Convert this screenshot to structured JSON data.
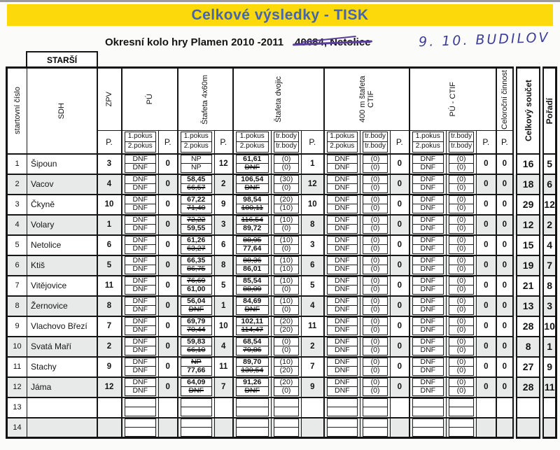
{
  "colors": {
    "banner_yellow": "#fbd90b",
    "title_blue": "#4565ae",
    "pen_ink_violet": "#5a3f9a",
    "handwriting_blue": "#3c3d99",
    "row_shade_gray": "#e7eae8",
    "line_black": "#161616"
  },
  "page": {
    "banner_title": "Celkové výsledky - TISK",
    "subtitle": "Okresní kolo hry Plamen 2010 -2011",
    "crossed_out_location": "40684, Netolice",
    "handwritten_note": "9. 10. BUDILOV",
    "category_label": "STARŠÍ"
  },
  "table": {
    "headers": {
      "start_no": "startovní číslo",
      "sdh": "SDH",
      "zpv": "ZPV",
      "pu": "PÚ",
      "s4x60": "Štafeta 4x60m",
      "dvojic": "Štafeta dvojic",
      "ctif400": "400 m štafeta CTIF",
      "puctif": "PÚ - CTIF",
      "celorocni": "Celoroční činnost",
      "total": "Celkový součet",
      "rank": "Pořadí",
      "p": "P.",
      "attempt1": "1.pokus",
      "attempt2": "2.pokus",
      "trbody": "tr.body"
    },
    "rows": [
      {
        "no": "1",
        "sdh": "Šipoun",
        "zpv": "3",
        "shaded": false,
        "pu": {
          "a1": {
            "v": "DNF"
          },
          "a2": {
            "v": "DNF"
          },
          "p": "0"
        },
        "s4x60": {
          "a1": {
            "v": "NP"
          },
          "a2": {
            "v": "NP"
          },
          "p": "12"
        },
        "dvojic": {
          "a1": {
            "v": "61,61",
            "b": true
          },
          "t1": {
            "v": "(0)"
          },
          "a2": {
            "v": "DNF",
            "s": true
          },
          "t2": {
            "v": "(0)"
          },
          "p": "1"
        },
        "ctif400": {
          "a1": {
            "v": "DNF"
          },
          "t1": {
            "v": "(0)"
          },
          "a2": {
            "v": "DNF"
          },
          "t2": {
            "v": "(0)"
          },
          "p": "0"
        },
        "puctif": {
          "a1": {
            "v": "DNF"
          },
          "t1": {
            "v": "(0)"
          },
          "a2": {
            "v": "DNF"
          },
          "t2": {
            "v": "(0)"
          },
          "p": "0"
        },
        "celorocni": "0",
        "total": "16",
        "rank": "5"
      },
      {
        "no": "2",
        "sdh": "Vacov",
        "zpv": "4",
        "shaded": true,
        "pu": {
          "a1": {
            "v": "DNF"
          },
          "a2": {
            "v": "DNF"
          },
          "p": "0"
        },
        "s4x60": {
          "a1": {
            "v": "58,45",
            "b": true
          },
          "a2": {
            "v": "66,57",
            "s": true
          },
          "p": "2"
        },
        "dvojic": {
          "a1": {
            "v": "106,54",
            "b": true
          },
          "t1": {
            "v": "(30)"
          },
          "a2": {
            "v": "DNF",
            "s": true
          },
          "t2": {
            "v": "(0)"
          },
          "p": "12"
        },
        "ctif400": {
          "a1": {
            "v": "DNF"
          },
          "t1": {
            "v": "(0)"
          },
          "a2": {
            "v": "DNF"
          },
          "t2": {
            "v": "(0)"
          },
          "p": "0"
        },
        "puctif": {
          "a1": {
            "v": "DNF"
          },
          "t1": {
            "v": "(0)"
          },
          "a2": {
            "v": "DNF"
          },
          "t2": {
            "v": "(0)"
          },
          "p": "0"
        },
        "celorocni": "0",
        "total": "18",
        "rank": "6"
      },
      {
        "no": "3",
        "sdh": "Čkyně",
        "zpv": "10",
        "shaded": false,
        "pu": {
          "a1": {
            "v": "DNF"
          },
          "a2": {
            "v": "DNF"
          },
          "p": "0"
        },
        "s4x60": {
          "a1": {
            "v": "67,22",
            "b": true
          },
          "a2": {
            "v": "71,40",
            "s": true
          },
          "p": "9"
        },
        "dvojic": {
          "a1": {
            "v": "98,54",
            "b": true
          },
          "t1": {
            "v": "(20)"
          },
          "a2": {
            "v": "100,11",
            "s": true
          },
          "t2": {
            "v": "(10)"
          },
          "p": "10"
        },
        "ctif400": {
          "a1": {
            "v": "DNF"
          },
          "t1": {
            "v": "(0)"
          },
          "a2": {
            "v": "DNF"
          },
          "t2": {
            "v": "(0)"
          },
          "p": "0"
        },
        "puctif": {
          "a1": {
            "v": "DNF"
          },
          "t1": {
            "v": "(0)"
          },
          "a2": {
            "v": "DNF"
          },
          "t2": {
            "v": "(0)"
          },
          "p": "0"
        },
        "celorocni": "0",
        "total": "29",
        "rank": "12"
      },
      {
        "no": "4",
        "sdh": "Volary",
        "zpv": "1",
        "shaded": true,
        "pu": {
          "a1": {
            "v": "DNF"
          },
          "a2": {
            "v": "DNF"
          },
          "p": "0"
        },
        "s4x60": {
          "a1": {
            "v": "72,22",
            "s": true
          },
          "a2": {
            "v": "59,55",
            "b": true
          },
          "p": "3"
        },
        "dvojic": {
          "a1": {
            "v": "116,54",
            "s": true
          },
          "t1": {
            "v": "(10)"
          },
          "a2": {
            "v": "89,72",
            "b": true
          },
          "t2": {
            "v": "(0)"
          },
          "p": "8"
        },
        "ctif400": {
          "a1": {
            "v": "DNF"
          },
          "t1": {
            "v": "(0)"
          },
          "a2": {
            "v": "DNF"
          },
          "t2": {
            "v": "(0)"
          },
          "p": "0"
        },
        "puctif": {
          "a1": {
            "v": "DNF"
          },
          "t1": {
            "v": "(0)"
          },
          "a2": {
            "v": "DNF"
          },
          "t2": {
            "v": "(0)"
          },
          "p": "0"
        },
        "celorocni": "0",
        "total": "12",
        "rank": "2"
      },
      {
        "no": "5",
        "sdh": "Netolice",
        "zpv": "6",
        "shaded": false,
        "pu": {
          "a1": {
            "v": "DNF"
          },
          "a2": {
            "v": "DNF"
          },
          "p": "0"
        },
        "s4x60": {
          "a1": {
            "v": "61,26",
            "b": true
          },
          "a2": {
            "v": "63,27",
            "s": true
          },
          "p": "6"
        },
        "dvojic": {
          "a1": {
            "v": "88,95",
            "s": true
          },
          "t1": {
            "v": "(10)"
          },
          "a2": {
            "v": "77,64",
            "b": true
          },
          "t2": {
            "v": "(0)"
          },
          "p": "3"
        },
        "ctif400": {
          "a1": {
            "v": "DNF"
          },
          "t1": {
            "v": "(0)"
          },
          "a2": {
            "v": "DNF"
          },
          "t2": {
            "v": "(0)"
          },
          "p": "0"
        },
        "puctif": {
          "a1": {
            "v": "DNF"
          },
          "t1": {
            "v": "(0)"
          },
          "a2": {
            "v": "DNF"
          },
          "t2": {
            "v": "(0)"
          },
          "p": "0"
        },
        "celorocni": "0",
        "total": "15",
        "rank": "4"
      },
      {
        "no": "6",
        "sdh": "Ktiš",
        "zpv": "5",
        "shaded": true,
        "pu": {
          "a1": {
            "v": "DNF"
          },
          "a2": {
            "v": "DNF"
          },
          "p": "0"
        },
        "s4x60": {
          "a1": {
            "v": "66,35",
            "b": true
          },
          "a2": {
            "v": "86,75",
            "s": true
          },
          "p": "8"
        },
        "dvojic": {
          "a1": {
            "v": "88,36",
            "s": true
          },
          "t1": {
            "v": "(10)"
          },
          "a2": {
            "v": "86,01",
            "b": true
          },
          "t2": {
            "v": "(10)"
          },
          "p": "6"
        },
        "ctif400": {
          "a1": {
            "v": "DNF"
          },
          "t1": {
            "v": "(0)"
          },
          "a2": {
            "v": "DNF"
          },
          "t2": {
            "v": "(0)"
          },
          "p": "0"
        },
        "puctif": {
          "a1": {
            "v": "DNF"
          },
          "t1": {
            "v": "(0)"
          },
          "a2": {
            "v": "DNF"
          },
          "t2": {
            "v": "(0)"
          },
          "p": "0"
        },
        "celorocni": "0",
        "total": "19",
        "rank": "7"
      },
      {
        "no": "7",
        "sdh": "Vitějovice",
        "zpv": "11",
        "shaded": false,
        "pu": {
          "a1": {
            "v": "DNF"
          },
          "a2": {
            "v": "DNF"
          },
          "p": "0"
        },
        "s4x60": {
          "a1": {
            "v": "76,69",
            "s": true
          },
          "a2": {
            "v": "61,00",
            "b": true
          },
          "p": "5"
        },
        "dvojic": {
          "a1": {
            "v": "85,54",
            "b": true
          },
          "t1": {
            "v": "(10)"
          },
          "a2": {
            "v": "88,09",
            "s": true
          },
          "t2": {
            "v": "(0)"
          },
          "p": "5"
        },
        "ctif400": {
          "a1": {
            "v": "DNF"
          },
          "t1": {
            "v": "(0)"
          },
          "a2": {
            "v": "DNF"
          },
          "t2": {
            "v": "(0)"
          },
          "p": "0"
        },
        "puctif": {
          "a1": {
            "v": "DNF"
          },
          "t1": {
            "v": "(0)"
          },
          "a2": {
            "v": "DNF"
          },
          "t2": {
            "v": "(0)"
          },
          "p": "0"
        },
        "celorocni": "0",
        "total": "21",
        "rank": "8"
      },
      {
        "no": "8",
        "sdh": "Žernovice",
        "zpv": "8",
        "shaded": true,
        "pu": {
          "a1": {
            "v": "DNF"
          },
          "a2": {
            "v": "DNF"
          },
          "p": "0"
        },
        "s4x60": {
          "a1": {
            "v": "56,04",
            "b": true
          },
          "a2": {
            "v": "DNF",
            "s": true
          },
          "p": "1"
        },
        "dvojic": {
          "a1": {
            "v": "84,69",
            "b": true
          },
          "t1": {
            "v": "(10)"
          },
          "a2": {
            "v": "DNF",
            "s": true
          },
          "t2": {
            "v": "(0)"
          },
          "p": "4"
        },
        "ctif400": {
          "a1": {
            "v": "DNF"
          },
          "t1": {
            "v": "(0)"
          },
          "a2": {
            "v": "DNF"
          },
          "t2": {
            "v": "(0)"
          },
          "p": "0"
        },
        "puctif": {
          "a1": {
            "v": "DNF"
          },
          "t1": {
            "v": "(0)"
          },
          "a2": {
            "v": "DNF"
          },
          "t2": {
            "v": "(0)"
          },
          "p": "0"
        },
        "celorocni": "0",
        "total": "13",
        "rank": "3"
      },
      {
        "no": "9",
        "sdh": "Vlachovo Březí",
        "zpv": "7",
        "shaded": false,
        "pu": {
          "a1": {
            "v": "DNF"
          },
          "a2": {
            "v": "DNF"
          },
          "p": "0"
        },
        "s4x60": {
          "a1": {
            "v": "69,79",
            "b": true
          },
          "a2": {
            "v": "70,44",
            "s": true
          },
          "p": "10"
        },
        "dvojic": {
          "a1": {
            "v": "102,11",
            "b": true
          },
          "t1": {
            "v": "(20)"
          },
          "a2": {
            "v": "114,47",
            "s": true
          },
          "t2": {
            "v": "(20)"
          },
          "p": "11"
        },
        "ctif400": {
          "a1": {
            "v": "DNF"
          },
          "t1": {
            "v": "(0)"
          },
          "a2": {
            "v": "DNF"
          },
          "t2": {
            "v": "(0)"
          },
          "p": "0"
        },
        "puctif": {
          "a1": {
            "v": "DNF"
          },
          "t1": {
            "v": "(0)"
          },
          "a2": {
            "v": "DNF"
          },
          "t2": {
            "v": "(0)"
          },
          "p": "0"
        },
        "celorocni": "0",
        "total": "28",
        "rank": "10"
      },
      {
        "no": "10",
        "sdh": "Svatá Maří",
        "zpv": "2",
        "shaded": true,
        "pu": {
          "a1": {
            "v": "DNF"
          },
          "a2": {
            "v": "DNF"
          },
          "p": "0"
        },
        "s4x60": {
          "a1": {
            "v": "59,83",
            "b": true
          },
          "a2": {
            "v": "66,10",
            "s": true
          },
          "p": "4"
        },
        "dvojic": {
          "a1": {
            "v": "68,54",
            "b": true
          },
          "t1": {
            "v": "(0)"
          },
          "a2": {
            "v": "79,86",
            "s": true
          },
          "t2": {
            "v": "(0)"
          },
          "p": "2"
        },
        "ctif400": {
          "a1": {
            "v": "DNF"
          },
          "t1": {
            "v": "(0)"
          },
          "a2": {
            "v": "DNF"
          },
          "t2": {
            "v": "(0)"
          },
          "p": "0"
        },
        "puctif": {
          "a1": {
            "v": "DNF"
          },
          "t1": {
            "v": "(0)"
          },
          "a2": {
            "v": "DNF"
          },
          "t2": {
            "v": "(0)"
          },
          "p": "0"
        },
        "celorocni": "0",
        "total": "8",
        "rank": "1"
      },
      {
        "no": "11",
        "sdh": "Stachy",
        "zpv": "9",
        "shaded": false,
        "pu": {
          "a1": {
            "v": "DNF"
          },
          "a2": {
            "v": "DNF"
          },
          "p": "0"
        },
        "s4x60": {
          "a1": {
            "v": "NP",
            "s": true
          },
          "a2": {
            "v": "77,66",
            "b": true
          },
          "p": "11"
        },
        "dvojic": {
          "a1": {
            "v": "89,70",
            "b": true
          },
          "t1": {
            "v": "(10)"
          },
          "a2": {
            "v": "130,54",
            "s": true
          },
          "t2": {
            "v": "(20)"
          },
          "p": "7"
        },
        "ctif400": {
          "a1": {
            "v": "DNF"
          },
          "t1": {
            "v": "(0)"
          },
          "a2": {
            "v": "DNF"
          },
          "t2": {
            "v": "(0)"
          },
          "p": "0"
        },
        "puctif": {
          "a1": {
            "v": "DNF"
          },
          "t1": {
            "v": "(0)"
          },
          "a2": {
            "v": "DNF"
          },
          "t2": {
            "v": "(0)"
          },
          "p": "0"
        },
        "celorocni": "0",
        "total": "27",
        "rank": "9"
      },
      {
        "no": "12",
        "sdh": "Jáma",
        "zpv": "12",
        "shaded": true,
        "pu": {
          "a1": {
            "v": "DNF"
          },
          "a2": {
            "v": "DNF"
          },
          "p": "0"
        },
        "s4x60": {
          "a1": {
            "v": "64,09",
            "b": true
          },
          "a2": {
            "v": "DNF",
            "s": true
          },
          "p": "7"
        },
        "dvojic": {
          "a1": {
            "v": "91,26",
            "b": true
          },
          "t1": {
            "v": "(20)"
          },
          "a2": {
            "v": "DNF",
            "s": true
          },
          "t2": {
            "v": "(0)"
          },
          "p": "9"
        },
        "ctif400": {
          "a1": {
            "v": "DNF"
          },
          "t1": {
            "v": "(0)"
          },
          "a2": {
            "v": "DNF"
          },
          "t2": {
            "v": "(0)"
          },
          "p": "0"
        },
        "puctif": {
          "a1": {
            "v": "DNF"
          },
          "t1": {
            "v": "(0)"
          },
          "a2": {
            "v": "DNF"
          },
          "t2": {
            "v": "(0)"
          },
          "p": "0"
        },
        "celorocni": "0",
        "total": "28",
        "rank": "11"
      },
      {
        "no": "13",
        "sdh": "",
        "zpv": "",
        "shaded": false,
        "pu": {
          "a1": null,
          "a2": null,
          "p": ""
        },
        "s4x60": {
          "a1": null,
          "a2": null,
          "p": ""
        },
        "dvojic": {
          "a1": null,
          "t1": null,
          "a2": null,
          "t2": null,
          "p": ""
        },
        "ctif400": {
          "a1": null,
          "t1": null,
          "a2": null,
          "t2": null,
          "p": ""
        },
        "puctif": {
          "a1": null,
          "t1": null,
          "a2": null,
          "t2": null,
          "p": ""
        },
        "celorocni": "",
        "total": "",
        "rank": ""
      },
      {
        "no": "14",
        "sdh": "",
        "zpv": "",
        "shaded": true,
        "pu": {
          "a1": null,
          "a2": null,
          "p": ""
        },
        "s4x60": {
          "a1": null,
          "a2": null,
          "p": ""
        },
        "dvojic": {
          "a1": null,
          "t1": null,
          "a2": null,
          "t2": null,
          "p": ""
        },
        "ctif400": {
          "a1": null,
          "t1": null,
          "a2": null,
          "t2": null,
          "p": ""
        },
        "puctif": {
          "a1": null,
          "t1": null,
          "a2": null,
          "t2": null,
          "p": ""
        },
        "celorocni": "",
        "total": "",
        "rank": ""
      }
    ]
  }
}
